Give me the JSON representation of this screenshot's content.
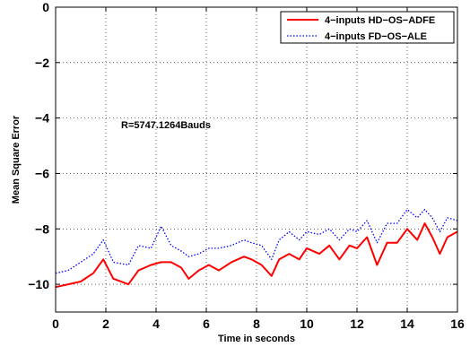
{
  "chart_data": {
    "type": "line",
    "xlabel": "Time in seconds",
    "ylabel": "Mean Square Error",
    "xlim": [
      0,
      16
    ],
    "ylim": [
      -11,
      0
    ],
    "xticks": [
      0,
      2,
      4,
      6,
      8,
      10,
      12,
      14,
      16
    ],
    "yticks": [
      0,
      -2,
      -4,
      -6,
      -8,
      -10
    ],
    "xtick_labels": [
      "0",
      "2",
      "4",
      "6",
      "8",
      "10",
      "12",
      "14",
      "16"
    ],
    "ytick_labels": [
      "0",
      "−2",
      "−4",
      "−6",
      "−8",
      "−10"
    ],
    "grid": true,
    "legend_position": "top-right",
    "annotation": "R=5747.1264Bauds",
    "series": [
      {
        "name": "4−inputs HD−OS−ADFE",
        "color": "#ff0000",
        "style": "solid",
        "x": [
          0,
          0.5,
          1.0,
          1.5,
          1.9,
          2.3,
          2.9,
          3.3,
          3.8,
          4.2,
          4.6,
          5.0,
          5.3,
          5.7,
          6.1,
          6.5,
          7.0,
          7.5,
          7.8,
          8.2,
          8.6,
          8.9,
          9.3,
          9.7,
          10.0,
          10.5,
          10.9,
          11.3,
          11.7,
          12.0,
          12.4,
          12.8,
          13.2,
          13.6,
          14.0,
          14.4,
          14.7,
          15.0,
          15.3,
          15.6,
          16.0
        ],
        "y": [
          -10.1,
          -10.0,
          -9.9,
          -9.6,
          -9.1,
          -9.8,
          -10.0,
          -9.5,
          -9.3,
          -9.2,
          -9.2,
          -9.4,
          -9.8,
          -9.5,
          -9.3,
          -9.5,
          -9.2,
          -9.0,
          -9.1,
          -9.3,
          -9.7,
          -9.1,
          -8.9,
          -9.1,
          -8.7,
          -8.9,
          -8.6,
          -9.1,
          -8.6,
          -8.7,
          -8.3,
          -9.3,
          -8.5,
          -8.5,
          -8.0,
          -8.4,
          -7.8,
          -8.3,
          -8.9,
          -8.3,
          -8.1
        ]
      },
      {
        "name": "4−inputs FD−OS−ALE",
        "color": "#0000ff",
        "style": "dotted",
        "x": [
          0,
          0.5,
          1.0,
          1.5,
          1.9,
          2.3,
          2.9,
          3.3,
          3.8,
          4.2,
          4.6,
          5.0,
          5.3,
          5.7,
          6.1,
          6.5,
          7.0,
          7.5,
          7.8,
          8.2,
          8.6,
          8.9,
          9.3,
          9.7,
          10.0,
          10.5,
          10.9,
          11.3,
          11.7,
          12.0,
          12.4,
          12.8,
          13.2,
          13.6,
          14.0,
          14.4,
          14.7,
          15.0,
          15.3,
          15.6,
          16.0
        ],
        "y": [
          -9.6,
          -9.5,
          -9.2,
          -8.9,
          -8.4,
          -9.2,
          -9.3,
          -8.6,
          -8.7,
          -7.9,
          -8.6,
          -8.8,
          -9.0,
          -8.9,
          -8.7,
          -8.7,
          -8.6,
          -8.4,
          -8.5,
          -8.6,
          -9.1,
          -8.4,
          -8.1,
          -8.4,
          -8.1,
          -8.2,
          -8.0,
          -8.4,
          -8.0,
          -8.1,
          -7.7,
          -8.5,
          -7.8,
          -7.8,
          -7.3,
          -7.6,
          -7.3,
          -7.6,
          -8.1,
          -7.6,
          -7.7
        ]
      }
    ]
  }
}
